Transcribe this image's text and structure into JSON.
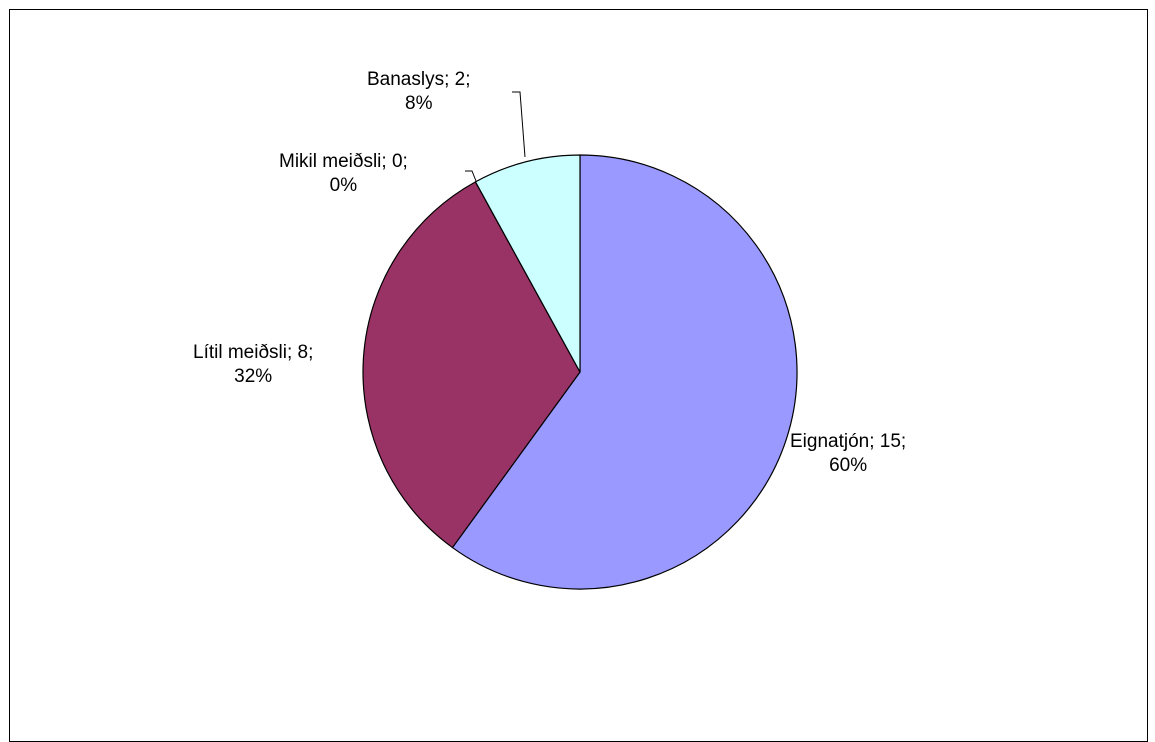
{
  "chart_data": {
    "type": "pie",
    "title": "",
    "slices": [
      {
        "label": "Eignatjón",
        "value": 15,
        "percent": "60%",
        "color": "#9999FF"
      },
      {
        "label": "Lítil meiðsli",
        "value": 8,
        "percent": "32%",
        "color": "#993366"
      },
      {
        "label": "Mikil meiðsli",
        "value": 0,
        "percent": "0%",
        "color": "#FFFFCC"
      },
      {
        "label": "Banaslys",
        "value": 2,
        "percent": "8%",
        "color": "#CCFFFF"
      }
    ],
    "data_labels": [
      {
        "line1": "Eignatjón; 15;",
        "line2": "60%"
      },
      {
        "line1": "Lítil meiðsli; 8;",
        "line2": "32%"
      },
      {
        "line1": "Mikil meiðsli; 0;",
        "line2": "0%"
      },
      {
        "line1": "Banaslys; 2;",
        "line2": "8%"
      }
    ],
    "legend": "none",
    "start_angle": "12 o'clock",
    "direction": "clockwise"
  }
}
